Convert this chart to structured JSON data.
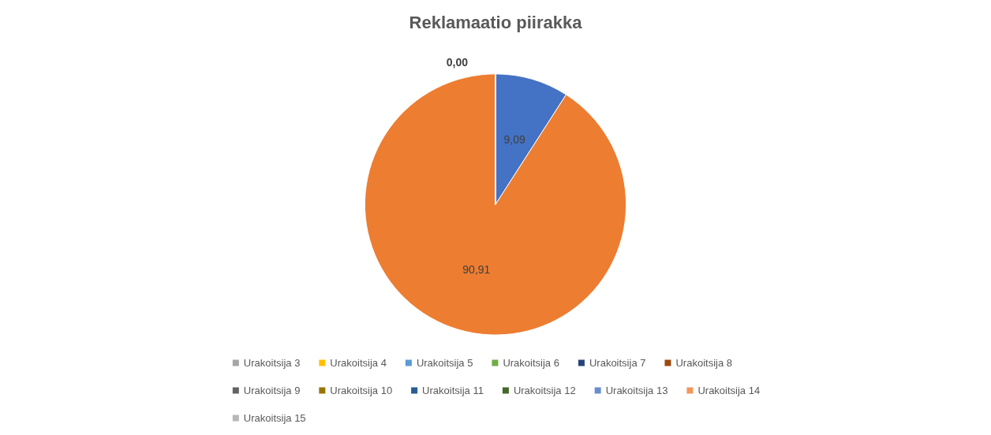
{
  "chart_data": {
    "type": "pie",
    "title": "Reklamaatio piirakka",
    "categories": [
      null,
      null,
      "Urakoitsija 3",
      "Urakoitsija 4",
      "Urakoitsija 5",
      "Urakoitsija 6",
      "Urakoitsija 7",
      "Urakoitsija 8",
      "Urakoitsija 9",
      "Urakoitsija 10",
      "Urakoitsija 11",
      "Urakoitsija 12",
      "Urakoitsija 13",
      "Urakoitsija 14",
      "Urakoitsija 15"
    ],
    "values": [
      9.09,
      90.91,
      0,
      0,
      0,
      0,
      0,
      0,
      0,
      0,
      0,
      0,
      0,
      0,
      0
    ],
    "value_labels": [
      "9,09",
      "90,91",
      "0,00",
      null,
      null,
      null,
      null,
      null,
      null,
      null,
      null,
      null,
      null,
      null,
      null
    ],
    "colors": [
      "#4472c4",
      "#ed7d31",
      "#a5a5a5",
      "#ffc000",
      "#5b9bd5",
      "#70ad47",
      "#264478",
      "#9e480e",
      "#636363",
      "#997300",
      "#255e91",
      "#43682b",
      "#698ed0",
      "#f1975a",
      "#b7b7b7"
    ],
    "legend": "bottom"
  }
}
